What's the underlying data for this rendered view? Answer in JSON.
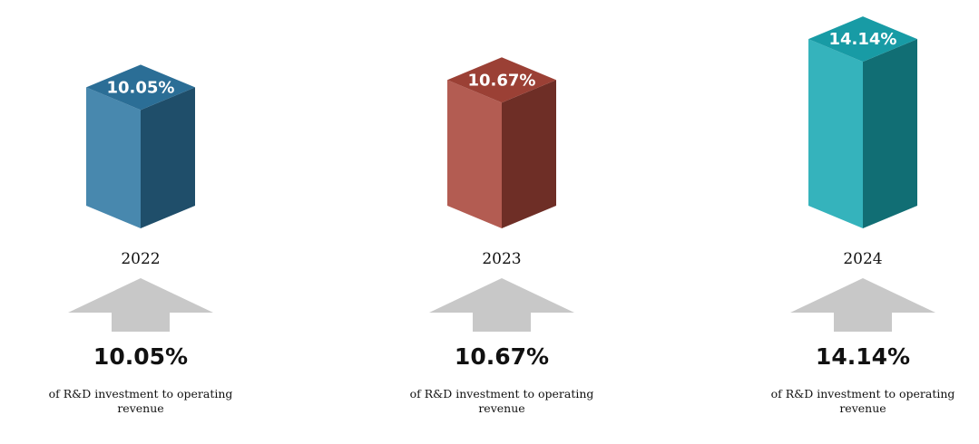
{
  "chart_data": {
    "type": "bar",
    "categories": [
      "2022",
      "2023",
      "2024"
    ],
    "values": [
      10.05,
      10.67,
      14.14
    ],
    "value_labels": [
      "10.05%",
      "10.67%",
      "14.14%"
    ],
    "colors": [
      "#2f78a3",
      "#a9463a",
      "#1aa9b3"
    ],
    "note": "of R&D investment to operating revenue"
  }
}
